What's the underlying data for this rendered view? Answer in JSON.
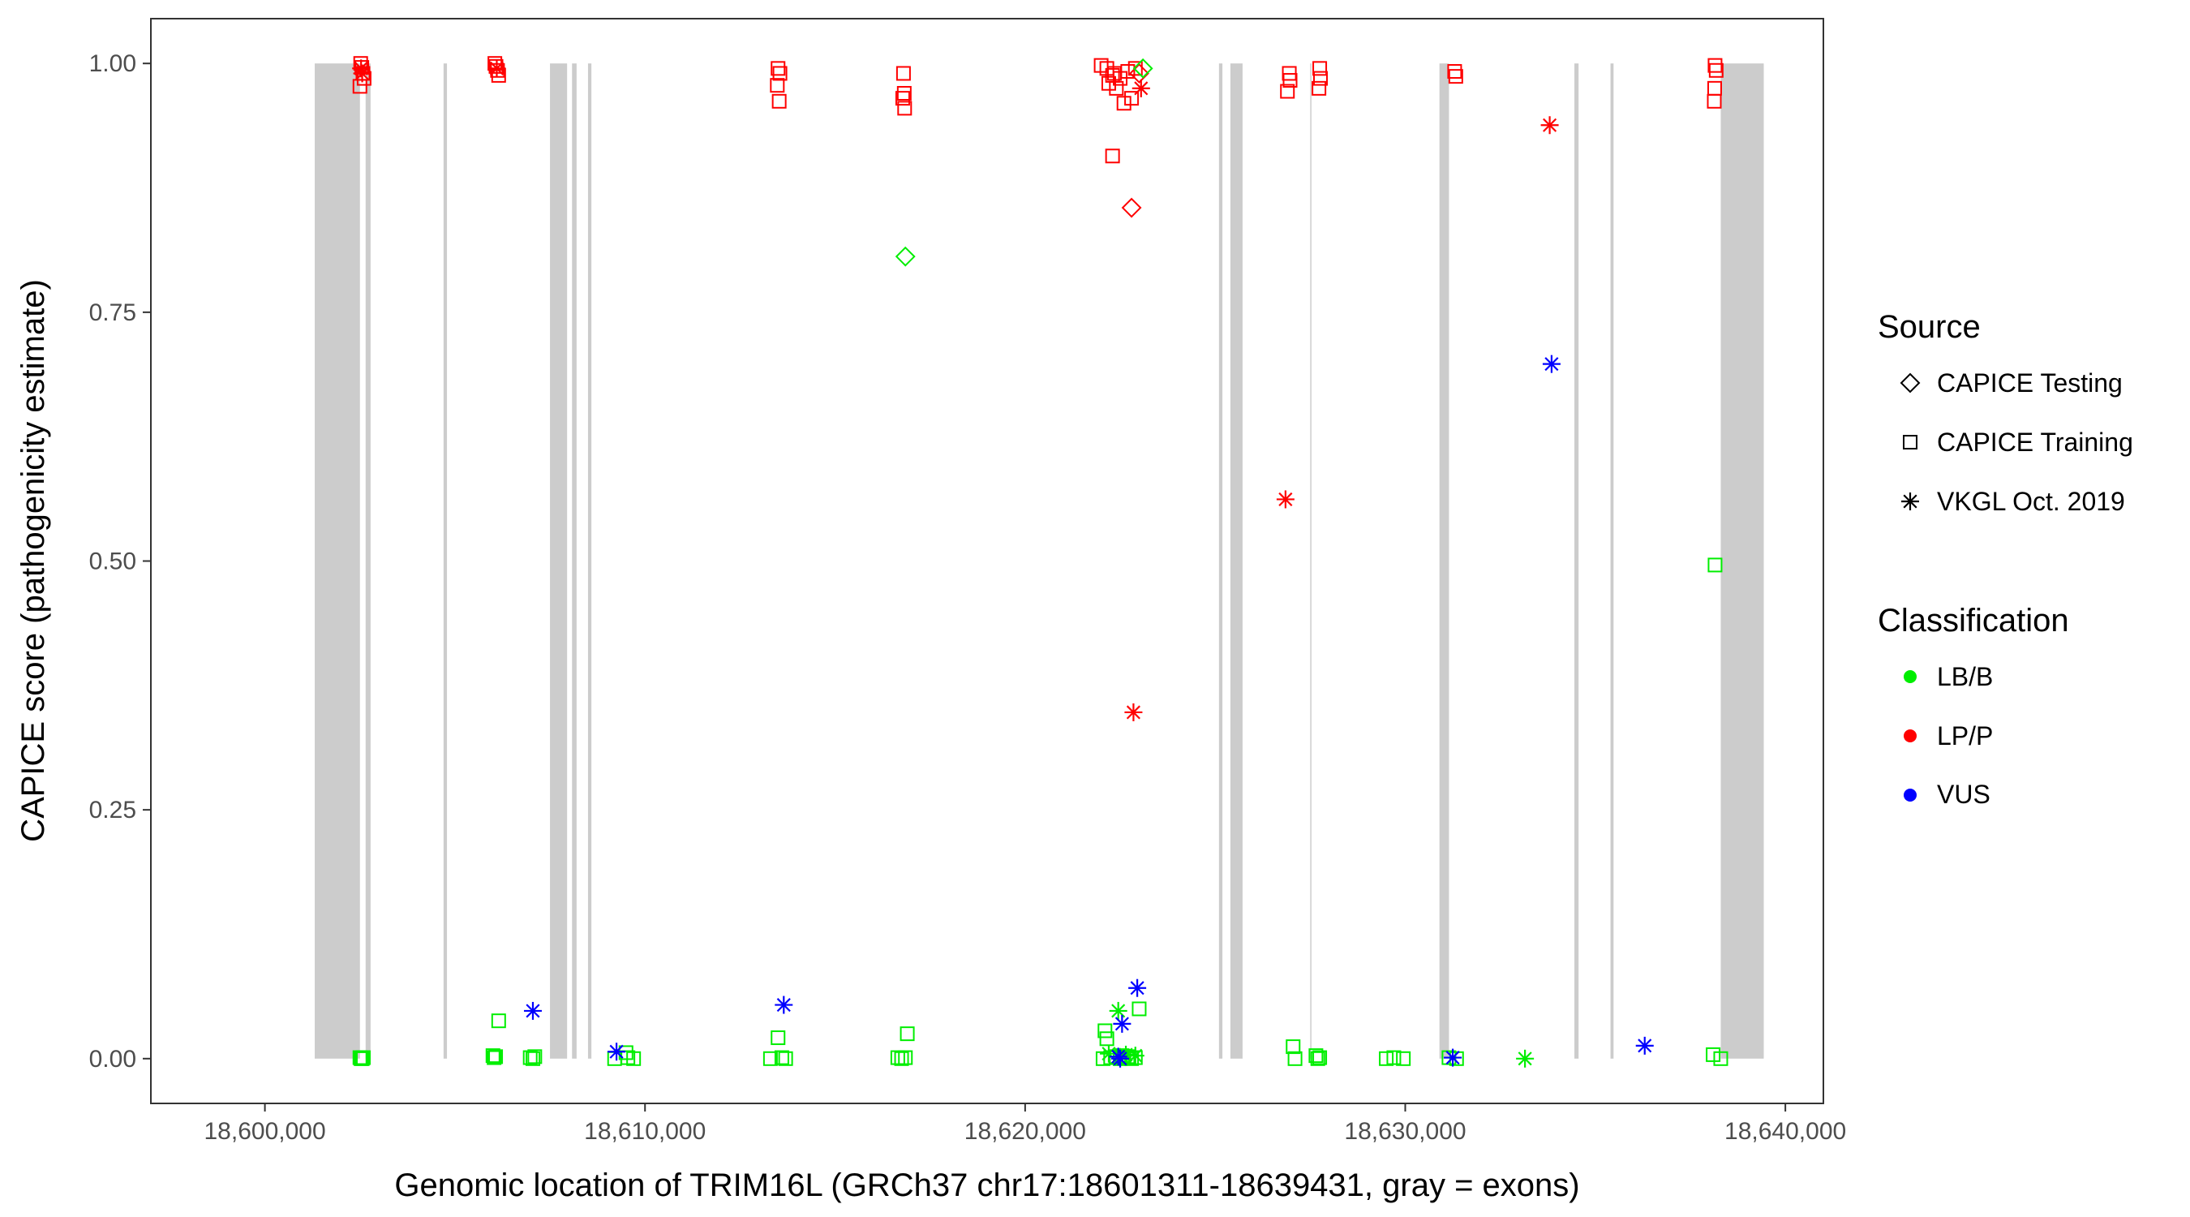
{
  "chart_data": {
    "type": "scatter",
    "xlabel": "Genomic location of TRIM16L (GRCh37 chr17:18601311-18639431, gray = exons)",
    "ylabel": "CAPICE score (pathogenicity estimate)",
    "xlim": [
      18597000,
      18641000
    ],
    "ylim": [
      -0.045,
      1.045
    ],
    "x_ticks": [
      18600000,
      18610000,
      18620000,
      18630000,
      18640000
    ],
    "x_tick_labels": [
      "18,600,000",
      "18,610,000",
      "18,620,000",
      "18,630,000",
      "18,640,000"
    ],
    "y_ticks": [
      0,
      0.25,
      0.5,
      0.75,
      1
    ],
    "y_tick_labels": [
      "0.00",
      "0.25",
      "0.50",
      "0.75",
      "1.00"
    ],
    "grid": false,
    "legend_position": "right",
    "exon_color": "#cccccc",
    "exons": [
      [
        18601311,
        18602500
      ],
      [
        18602650,
        18602780
      ],
      [
        18604700,
        18604790
      ],
      [
        18607500,
        18607950
      ],
      [
        18608080,
        18608200
      ],
      [
        18608500,
        18608590
      ],
      [
        18625100,
        18625190
      ],
      [
        18625400,
        18625720
      ],
      [
        18627500,
        18627530
      ],
      [
        18630900,
        18631150
      ],
      [
        18634450,
        18634560
      ],
      [
        18635400,
        18635480
      ],
      [
        18638300,
        18639431
      ]
    ],
    "legend": {
      "source_title": "Source",
      "source_items": [
        {
          "label": "CAPICE Testing",
          "shape": "diamond"
        },
        {
          "label": "CAPICE Training",
          "shape": "square"
        },
        {
          "label": "VKGL Oct. 2019",
          "shape": "asterisk"
        }
      ],
      "class_title": "Classification",
      "class_items": [
        {
          "label": "LB/B",
          "color": "#00ee00"
        },
        {
          "label": "LP/P",
          "color": "#ff0000"
        },
        {
          "label": "VUS",
          "color": "#0000ff"
        }
      ]
    },
    "series": [
      {
        "source": "CAPICE Training",
        "classification": "LP/P",
        "points": [
          [
            18602520,
            1.0
          ],
          [
            18602550,
            0.996
          ],
          [
            18602580,
            0.99
          ],
          [
            18602610,
            0.985
          ],
          [
            18602500,
            0.977
          ],
          [
            18606050,
            1.0
          ],
          [
            18606080,
            0.997
          ],
          [
            18606120,
            0.993
          ],
          [
            18606150,
            0.988
          ],
          [
            18613500,
            0.995
          ],
          [
            18613550,
            0.99
          ],
          [
            18613480,
            0.978
          ],
          [
            18613530,
            0.962
          ],
          [
            18616800,
            0.99
          ],
          [
            18616820,
            0.97
          ],
          [
            18616780,
            0.965
          ],
          [
            18616830,
            0.955
          ],
          [
            18622000,
            0.998
          ],
          [
            18622150,
            0.995
          ],
          [
            18622350,
            0.99
          ],
          [
            18622500,
            0.985
          ],
          [
            18622700,
            0.992
          ],
          [
            18622200,
            0.98
          ],
          [
            18622400,
            0.975
          ],
          [
            18622800,
            0.965
          ],
          [
            18622600,
            0.96
          ],
          [
            18622300,
            0.988
          ],
          [
            18622900,
            0.995
          ],
          [
            18622300,
            0.907
          ],
          [
            18626950,
            0.99
          ],
          [
            18626970,
            0.983
          ],
          [
            18626900,
            0.972
          ],
          [
            18627750,
            0.995
          ],
          [
            18627770,
            0.985
          ],
          [
            18627730,
            0.975
          ],
          [
            18631300,
            0.992
          ],
          [
            18631330,
            0.987
          ],
          [
            18638150,
            0.998
          ],
          [
            18638180,
            0.993
          ],
          [
            18638140,
            0.975
          ],
          [
            18638130,
            0.962
          ]
        ]
      },
      {
        "source": "CAPICE Testing",
        "classification": "LP/P",
        "points": [
          [
            18622800,
            0.855
          ],
          [
            18623000,
            0.99
          ]
        ]
      },
      {
        "source": "CAPICE Testing",
        "classification": "LB/B",
        "points": [
          [
            18616850,
            0.806
          ],
          [
            18623100,
            0.995
          ]
        ]
      },
      {
        "source": "VKGL Oct. 2019",
        "classification": "LP/P",
        "points": [
          [
            18602530,
            0.995
          ],
          [
            18602560,
            0.99
          ],
          [
            18606100,
            0.995
          ],
          [
            18623050,
            0.975
          ],
          [
            18626850,
            0.562
          ],
          [
            18622850,
            0.348
          ],
          [
            18633800,
            0.938
          ]
        ]
      },
      {
        "source": "CAPICE Training",
        "classification": "LB/B",
        "points": [
          [
            18602500,
            0.001
          ],
          [
            18602530,
            0.0
          ],
          [
            18602560,
            0.0
          ],
          [
            18602590,
            0.001
          ],
          [
            18606000,
            0.003
          ],
          [
            18606030,
            0.001
          ],
          [
            18606070,
            0.002
          ],
          [
            18606150,
            0.038
          ],
          [
            18606980,
            0.001
          ],
          [
            18607050,
            0.0
          ],
          [
            18607100,
            0.002
          ],
          [
            18609200,
            0.0
          ],
          [
            18609500,
            0.006
          ],
          [
            18609550,
            0.001
          ],
          [
            18609700,
            0.0
          ],
          [
            18613300,
            0.0
          ],
          [
            18613500,
            0.021
          ],
          [
            18613600,
            0.001
          ],
          [
            18613700,
            0.0
          ],
          [
            18616650,
            0.001
          ],
          [
            18616750,
            0.0
          ],
          [
            18616850,
            0.001
          ],
          [
            18616900,
            0.025
          ],
          [
            18622100,
            0.028
          ],
          [
            18622150,
            0.02
          ],
          [
            18622400,
            0.002
          ],
          [
            18622500,
            0.0
          ],
          [
            18622550,
            0.003
          ],
          [
            18622600,
            0.001
          ],
          [
            18622700,
            0.002
          ],
          [
            18622800,
            0.0
          ],
          [
            18622900,
            0.001
          ],
          [
            18623000,
            0.05
          ],
          [
            18622050,
            0.0
          ],
          [
            18622250,
            0.001
          ],
          [
            18627050,
            0.012
          ],
          [
            18627100,
            0.0
          ],
          [
            18627650,
            0.003
          ],
          [
            18627700,
            0.0
          ],
          [
            18627750,
            0.001
          ],
          [
            18629500,
            0.0
          ],
          [
            18629700,
            0.001
          ],
          [
            18629950,
            0.0
          ],
          [
            18631150,
            0.001
          ],
          [
            18631350,
            0.0
          ],
          [
            18638150,
            0.496
          ],
          [
            18638100,
            0.004
          ],
          [
            18638300,
            0.0
          ]
        ]
      },
      {
        "source": "VKGL Oct. 2019",
        "classification": "LB/B",
        "points": [
          [
            18622450,
            0.048
          ],
          [
            18622200,
            0.005
          ],
          [
            18622650,
            0.004
          ],
          [
            18622900,
            0.003
          ],
          [
            18633150,
            0.0
          ]
        ]
      },
      {
        "source": "VKGL Oct. 2019",
        "classification": "VUS",
        "points": [
          [
            18607050,
            0.048
          ],
          [
            18609250,
            0.007
          ],
          [
            18613650,
            0.054
          ],
          [
            18622550,
            0.035
          ],
          [
            18622950,
            0.071
          ],
          [
            18622450,
            0.002
          ],
          [
            18622500,
            0.0
          ],
          [
            18631250,
            0.001
          ],
          [
            18633850,
            0.698
          ],
          [
            18636300,
            0.013
          ]
        ]
      }
    ]
  }
}
